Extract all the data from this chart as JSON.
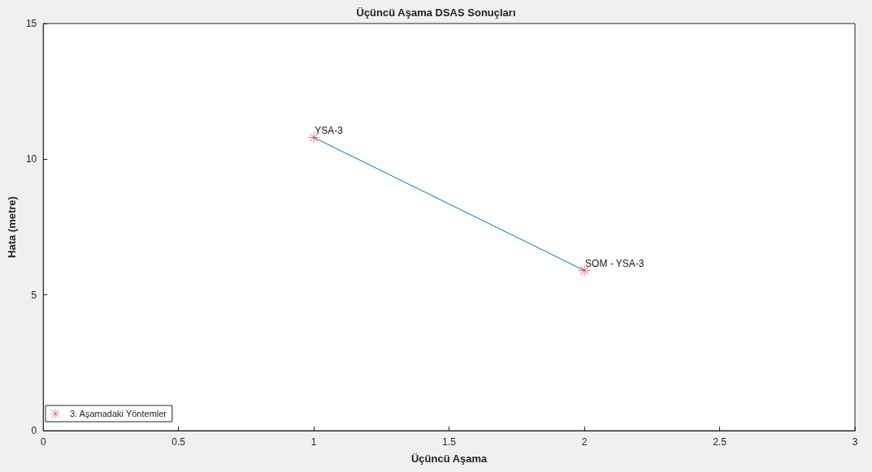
{
  "chart_data": {
    "type": "line",
    "title": "Üçüncü Aşama DSAS Sonuçları",
    "xlabel": "Üçüncü Aşama",
    "ylabel": "Hata (metre)",
    "x": [
      1,
      2
    ],
    "series": [
      {
        "color": "#0072bd",
        "values": [
          10.8,
          5.9
        ],
        "marker": "none"
      },
      {
        "type": "scatter",
        "name": "3. Aşamadaki Yöntemler",
        "color": "#e3262c",
        "values": [
          10.8,
          5.9
        ],
        "marker": "star"
      }
    ],
    "xlim": [
      0,
      3
    ],
    "xticks": [
      0,
      0.5,
      1,
      1.5,
      2,
      2.5,
      3
    ],
    "ylim": [
      0,
      15
    ],
    "yticks": [
      0,
      5,
      10,
      15
    ],
    "grid": false,
    "legend": "bottom left",
    "annotations": [
      {
        "text": "YSA-3",
        "x": 1,
        "y": 10.8
      },
      {
        "text": "SOM - YSA-3",
        "x": 2,
        "y": 5.9
      }
    ]
  }
}
